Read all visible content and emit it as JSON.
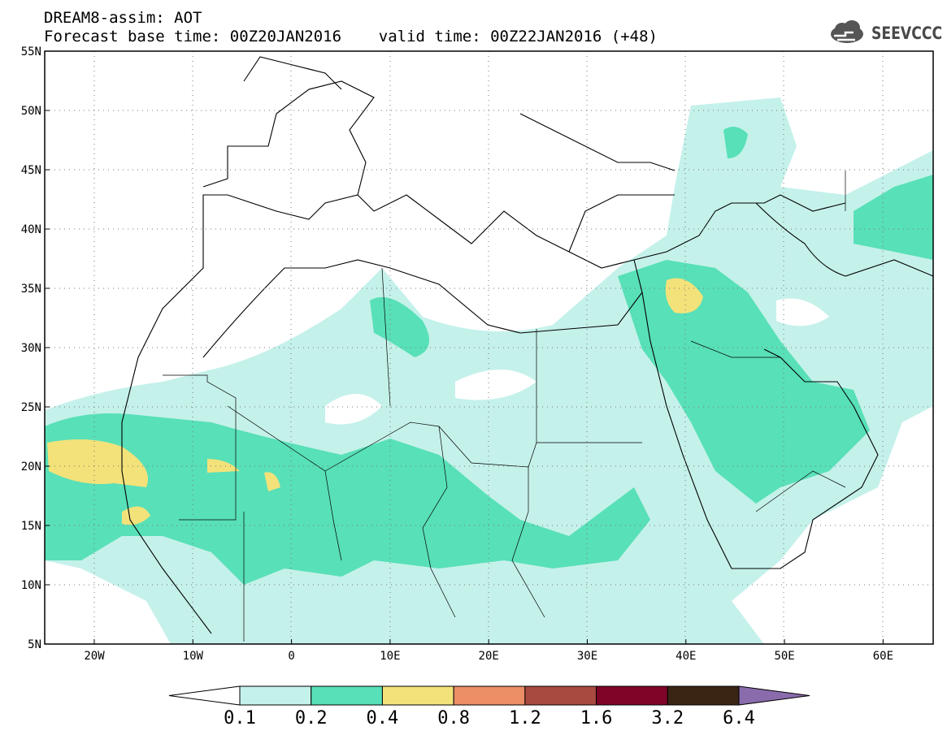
{
  "header": {
    "line1": "DREAM8-assim: AOT",
    "line2": "Forecast base time: 00Z20JAN2016    valid time: 00Z22JAN2016 (+48)",
    "logo_text": "SEEVCCC"
  },
  "map": {
    "projection": "lat-lon",
    "lon_range": [
      -25,
      65
    ],
    "lat_range": [
      5,
      55
    ],
    "y_axis_labels": [
      "55N",
      "50N",
      "45N",
      "40N",
      "35N",
      "30N",
      "25N",
      "20N",
      "15N",
      "10N",
      "5N"
    ],
    "x_axis_labels": [
      "20W",
      "10W",
      "0",
      "10E",
      "20E",
      "30E",
      "40E",
      "50E",
      "60E"
    ],
    "gridlines": "dotted"
  },
  "colorbar": {
    "labels": [
      "0.1",
      "0.2",
      "0.4",
      "0.8",
      "1.2",
      "1.6",
      "3.2",
      "6.4"
    ],
    "colors": [
      "#ffffff",
      "#c5f1eb",
      "#58e0b8",
      "#f3e27a",
      "#ec8e66",
      "#a84a3f",
      "#7e0527",
      "#3a2414",
      "#8a6bab"
    ]
  }
}
